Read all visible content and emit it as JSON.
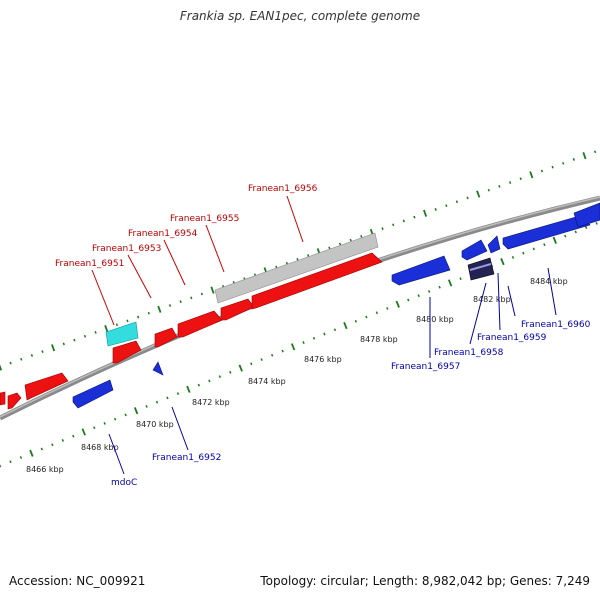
{
  "title": "Frankia sp. EAN1pec, complete genome",
  "footer": {
    "accession": "Accession: NC_009921",
    "summary": "Topology: circular; Length: 8,982,042 bp; Genes: 7,249"
  },
  "colors": {
    "forward_gene": "#ee1111",
    "reverse_gene": "#1a2fd8",
    "pseudo_gene": "#c4c4c4",
    "rna_gene": "#33dddd",
    "dark_gene": "#222255",
    "tick": "#1a7a1a",
    "backbone": "#8a8a8a",
    "label_forward": "#bb0000",
    "label_reverse": "#0000aa"
  },
  "scale_labels": [
    "8466 kbp",
    "8468 kbp",
    "8470 kbp",
    "8472 kbp",
    "8474 kbp",
    "8476 kbp",
    "8478 kbp",
    "8480 kbp",
    "8482 kbp",
    "8484 kbp"
  ],
  "gene_labels": {
    "franean1_6951": "Franean1_6951",
    "franean1_6953": "Franean1_6953",
    "franean1_6954": "Franean1_6954",
    "franean1_6955": "Franean1_6955",
    "franean1_6956": "Franean1_6956",
    "franean1_6952": "Franean1_6952",
    "mdoc": "mdoC",
    "franean1_6957": "Franean1_6957",
    "franean1_6958": "Franean1_6958",
    "franean1_6959": "Franean1_6959",
    "franean1_6960": "Franean1_6960"
  }
}
